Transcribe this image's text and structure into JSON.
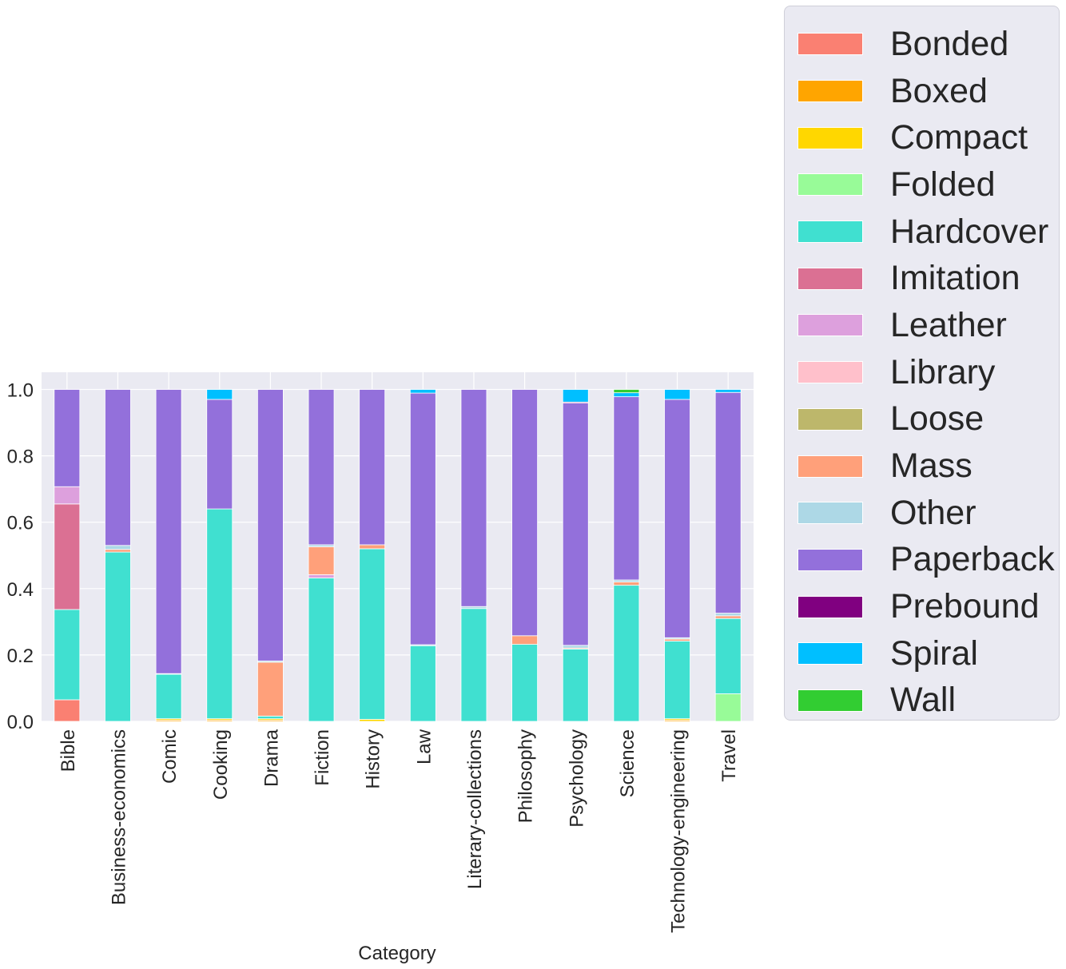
{
  "chart_data": {
    "type": "bar",
    "stacked": true,
    "title": "",
    "xlabel": "Category",
    "ylabel": "",
    "ylim": [
      0,
      1.05
    ],
    "yticks": [
      "0.0",
      "0.2",
      "0.4",
      "0.6",
      "0.8",
      "1.0"
    ],
    "grid": true,
    "legend_position": "right",
    "background": "#eaeaf2",
    "categories": [
      "Bible",
      "Business-economics",
      "Comic",
      "Cooking",
      "Drama",
      "Fiction",
      "History",
      "Law",
      "Literary-collections",
      "Philosophy",
      "Psychology",
      "Science",
      "Technology-engineering",
      "Travel"
    ],
    "series": [
      {
        "name": "Bonded",
        "color": "#fa8072",
        "values": [
          0.065,
          0,
          0,
          0,
          0,
          0,
          0,
          0,
          0,
          0,
          0,
          0,
          0,
          0
        ]
      },
      {
        "name": "Boxed",
        "color": "#ffa500",
        "values": [
          0,
          0,
          0.004,
          0.004,
          0.004,
          0,
          0,
          0,
          0,
          0,
          0,
          0,
          0.004,
          0
        ]
      },
      {
        "name": "Compact",
        "color": "#ffd700",
        "values": [
          0,
          0,
          0.004,
          0.004,
          0.004,
          0,
          0.006,
          0,
          0,
          0,
          0,
          0,
          0.004,
          0
        ]
      },
      {
        "name": "Folded",
        "color": "#98fb98",
        "values": [
          0,
          0,
          0,
          0,
          0,
          0,
          0,
          0,
          0,
          0,
          0,
          0,
          0,
          0.083
        ]
      },
      {
        "name": "Hardcover",
        "color": "#40e0d0",
        "values": [
          0.272,
          0.51,
          0.134,
          0.632,
          0.008,
          0.432,
          0.514,
          0.228,
          0.34,
          0.232,
          0.218,
          0.41,
          0.234,
          0.227
        ]
      },
      {
        "name": "Imitation",
        "color": "#db7093",
        "values": [
          0.318,
          0,
          0,
          0,
          0,
          0,
          0,
          0,
          0,
          0,
          0,
          0,
          0,
          0
        ]
      },
      {
        "name": "Leather",
        "color": "#dda0dd",
        "values": [
          0.052,
          0,
          0,
          0,
          0,
          0.01,
          0,
          0,
          0,
          0,
          0,
          0,
          0,
          0
        ]
      },
      {
        "name": "Library",
        "color": "#ffc0cb",
        "values": [
          0,
          0,
          0,
          0,
          0,
          0,
          0,
          0,
          0,
          0,
          0,
          0,
          0,
          0
        ]
      },
      {
        "name": "Loose",
        "color": "#bdb76b",
        "values": [
          0,
          0,
          0,
          0,
          0,
          0,
          0,
          0,
          0,
          0,
          0,
          0,
          0,
          0
        ]
      },
      {
        "name": "Mass",
        "color": "#ffa07a",
        "values": [
          0,
          0.008,
          0,
          0,
          0.162,
          0.084,
          0.012,
          0,
          0,
          0.026,
          0.003,
          0.01,
          0.006,
          0.008
        ]
      },
      {
        "name": "Other",
        "color": "#add8e6",
        "values": [
          0,
          0.012,
          0.002,
          0,
          0.004,
          0.006,
          0,
          0.003,
          0.006,
          0,
          0.008,
          0.006,
          0.004,
          0.008
        ]
      },
      {
        "name": "Paperback",
        "color": "#9370db",
        "values": [
          0.293,
          0.47,
          0.856,
          0.33,
          0.818,
          0.468,
          0.468,
          0.758,
          0.654,
          0.742,
          0.73,
          0.552,
          0.718,
          0.665
        ]
      },
      {
        "name": "Prebound",
        "color": "#800080",
        "values": [
          0,
          0,
          0,
          0,
          0,
          0,
          0,
          0,
          0,
          0,
          0.003,
          0,
          0,
          0
        ]
      },
      {
        "name": "Spiral",
        "color": "#00bfff",
        "values": [
          0,
          0,
          0,
          0.03,
          0,
          0,
          0,
          0.011,
          0,
          0,
          0.038,
          0.012,
          0.03,
          0.009
        ]
      },
      {
        "name": "Wall",
        "color": "#32cd32",
        "values": [
          0,
          0,
          0,
          0,
          0,
          0,
          0,
          0,
          0,
          0,
          0,
          0.01,
          0,
          0
        ]
      }
    ]
  }
}
